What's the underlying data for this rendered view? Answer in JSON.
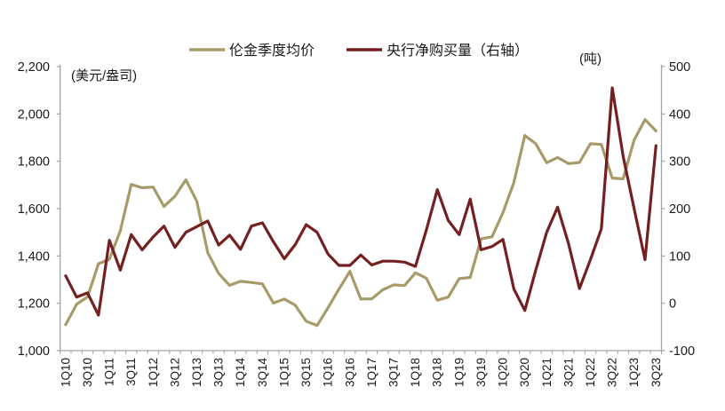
{
  "chart_data": {
    "type": "line",
    "title": "",
    "legend_position": "top-center",
    "grid": false,
    "background_color": "#ffffff",
    "axis_color": "#a3a3a3",
    "text_color": "#1a1a1a",
    "x_tick_labels": [
      "1Q10",
      "3Q10",
      "1Q11",
      "3Q11",
      "1Q12",
      "3Q12",
      "1Q13",
      "3Q13",
      "1Q14",
      "3Q14",
      "1Q15",
      "3Q15",
      "1Q16",
      "3Q16",
      "1Q17",
      "3Q17",
      "1Q18",
      "3Q18",
      "1Q19",
      "3Q19",
      "1Q20",
      "3Q20",
      "1Q21",
      "3Q21",
      "1Q22",
      "3Q22",
      "1Q23",
      "3Q23"
    ],
    "x_label_interval_quarters": 2,
    "left_axis": {
      "unit_label": "(美元/盎司)",
      "min": 1000,
      "max": 2200,
      "step": 200,
      "tick_labels": [
        "2,200",
        "2,000",
        "1,800",
        "1,600",
        "1,400",
        "1,200",
        "1,000"
      ]
    },
    "right_axis": {
      "unit_label": "(吨)",
      "min": -100,
      "max": 500,
      "step": 100,
      "tick_labels": [
        "500",
        "400",
        "300",
        "200",
        "100",
        "0",
        "-100"
      ]
    },
    "series": [
      {
        "name": "伦金季度均价",
        "axis": "left",
        "color": "#a89b6a",
        "values": [
          1110,
          1196,
          1227,
          1367,
          1386,
          1506,
          1702,
          1688,
          1691,
          1609,
          1652,
          1722,
          1631,
          1414,
          1326,
          1276,
          1293,
          1288,
          1282,
          1201,
          1218,
          1192,
          1124,
          1106,
          1181,
          1260,
          1335,
          1218,
          1219,
          1257,
          1278,
          1275,
          1329,
          1306,
          1213,
          1226,
          1304,
          1309,
          1472,
          1481,
          1583,
          1711,
          1909,
          1874,
          1794,
          1816,
          1790,
          1795,
          1874,
          1871,
          1729,
          1726,
          1890,
          1976,
          1928
        ]
      },
      {
        "name": "央行净购买量（右轴）",
        "axis": "right",
        "color": "#752020",
        "values": [
          58,
          13,
          22,
          -25,
          133,
          70,
          145,
          113,
          140,
          163,
          118,
          150,
          162,
          174,
          123,
          144,
          114,
          163,
          170,
          130,
          94,
          124,
          166,
          150,
          104,
          80,
          80,
          102,
          81,
          89,
          89,
          87,
          78,
          155,
          240,
          175,
          145,
          220,
          113,
          120,
          135,
          30,
          -15,
          70,
          150,
          203,
          126,
          31,
          92,
          157,
          455,
          310,
          200,
          92,
          333
        ]
      }
    ]
  }
}
